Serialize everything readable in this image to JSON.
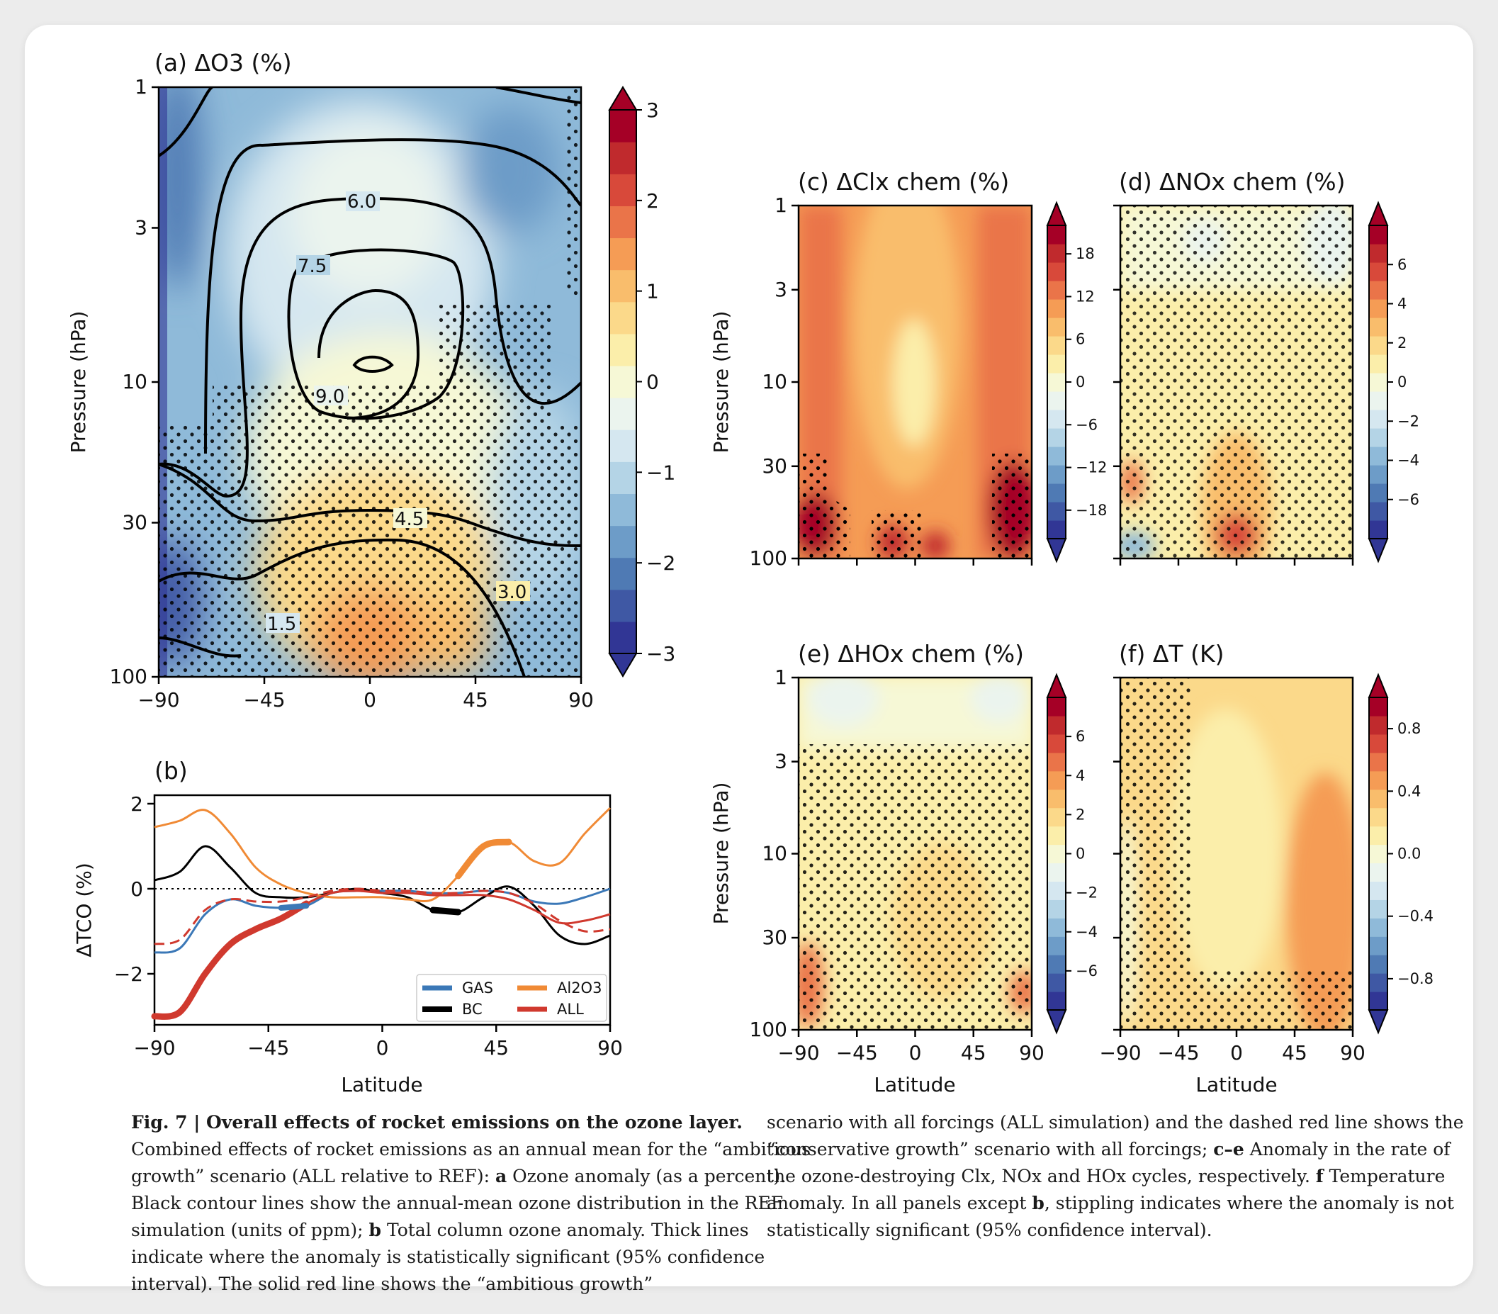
{
  "caption": {
    "fig_label": "Fig. 7 | Overall effects of rocket emissions on the ozone layer.",
    "left_text": "Combined effects of rocket emissions as an annual mean for the “ambitious growth” scenario (ALL relative to REF):",
    "a_label": "a",
    "a_text": "Ozone anomaly (as a percent). Black contour lines show the annual-mean ozone distribution in the REF simulation (units of ppm);",
    "b_label": "b",
    "b_text": "Total column ozone anomaly. Thick lines indicate where the anomaly is statistically significant (95% confidence interval). The solid red line shows the “ambitious growth”",
    "right_text1": "scenario with all forcings (ALL simulation) and the dashed red line shows the “conservative growth” scenario with all forcings;",
    "ce_label": "c–e",
    "ce_text": "Anomaly in the rate of the ozone-destroying Clx, NOx and HOx cycles, respectively.",
    "f_label": "f",
    "f_text": "Temperature anomaly. In all panels except",
    "b_label2": "b",
    "right_text2": ", stippling indicates where the anomaly is not statistically significant (95% confidence interval)."
  },
  "colors": {
    "gas": "#3b78b7",
    "bc": "#000000",
    "al2o3": "#f08a35",
    "all": "#d0392e",
    "cmap": [
      "#313695",
      "#3f58a4",
      "#4f7ab4",
      "#6d9cc8",
      "#8fbad9",
      "#b4d4e6",
      "#d5e7f0",
      "#ebf4ee",
      "#f6f8d6",
      "#fbeeaa",
      "#fbd98a",
      "#f9bd6c",
      "#f59c55",
      "#ea7449",
      "#d8493a",
      "#c02a2d",
      "#a50026"
    ]
  },
  "chart_data": [
    {
      "panel": "a",
      "type": "heatmap",
      "title": "(a) ΔO3 (%)",
      "xlabel": "",
      "ylabel": "Pressure (hPa)",
      "xlim": [
        -90,
        90
      ],
      "x_ticks": [
        "−90",
        "−45",
        "0",
        "45",
        "90"
      ],
      "ylim_hPa": [
        100,
        1
      ],
      "y_ticks": [
        "1",
        "3",
        "10",
        "30",
        "100"
      ],
      "colorbar_ticks": [
        "3",
        "2",
        "1",
        "0",
        "−1",
        "−2",
        "−3"
      ],
      "colorbar_range": [
        -3,
        3
      ],
      "contour_labels": [
        "6.0",
        "7.5",
        "9.0",
        "4.5",
        "3.0",
        "1.5"
      ],
      "description_values": {
        "max_anomaly_pct": 3,
        "min_anomaly_pct": -3
      }
    },
    {
      "panel": "b",
      "type": "line",
      "title": "(b)",
      "xlabel": "Latitude",
      "ylabel": "ΔTCO (%)",
      "xlim": [
        -90,
        90
      ],
      "ylim": [
        -3.2,
        2.2
      ],
      "x_ticks": [
        "−90",
        "−45",
        "0",
        "45",
        "90"
      ],
      "y_ticks": [
        "2",
        "0",
        "−2"
      ],
      "series": [
        {
          "name": "GAS",
          "x": [
            -90,
            -80,
            -70,
            -60,
            -50,
            -40,
            -30,
            -20,
            -10,
            0,
            10,
            20,
            30,
            40,
            50,
            60,
            70,
            80,
            90
          ],
          "y": [
            -1.5,
            -1.4,
            -0.6,
            -0.25,
            -0.4,
            -0.45,
            -0.4,
            -0.1,
            -0.05,
            -0.05,
            -0.05,
            -0.1,
            -0.1,
            -0.05,
            -0.1,
            -0.3,
            -0.35,
            -0.2,
            0.0
          ]
        },
        {
          "name": "BC",
          "x": [
            -90,
            -80,
            -70,
            -60,
            -50,
            -40,
            -30,
            -20,
            -10,
            0,
            10,
            20,
            30,
            40,
            50,
            60,
            70,
            80,
            90
          ],
          "y": [
            0.2,
            0.4,
            1.0,
            0.5,
            -0.1,
            -0.2,
            -0.2,
            -0.1,
            0.0,
            -0.1,
            -0.2,
            -0.5,
            -0.55,
            -0.2,
            0.05,
            -0.4,
            -1.1,
            -1.3,
            -1.1
          ]
        },
        {
          "name": "Al2O3",
          "x": [
            -90,
            -80,
            -70,
            -60,
            -50,
            -40,
            -30,
            -20,
            -10,
            0,
            10,
            20,
            30,
            40,
            50,
            60,
            70,
            80,
            90
          ],
          "y": [
            1.45,
            1.6,
            1.85,
            1.3,
            0.5,
            0.1,
            -0.1,
            -0.2,
            -0.2,
            -0.2,
            -0.25,
            -0.25,
            0.3,
            1.0,
            1.1,
            0.65,
            0.6,
            1.3,
            1.9
          ]
        },
        {
          "name": "ALL",
          "x": [
            -90,
            -80,
            -70,
            -60,
            -50,
            -40,
            -30,
            -20,
            -10,
            0,
            10,
            20,
            30,
            40,
            50,
            60,
            70,
            80,
            90
          ],
          "y": [
            -3.0,
            -2.9,
            -2.0,
            -1.3,
            -0.95,
            -0.7,
            -0.35,
            -0.1,
            -0.05,
            -0.1,
            -0.1,
            -0.15,
            -0.15,
            -0.15,
            -0.25,
            -0.5,
            -0.8,
            -0.75,
            -0.6
          ]
        },
        {
          "name": "ALL (conservative, dashed)",
          "x": [
            -90,
            -80,
            -70,
            -60,
            -50,
            -40,
            -30,
            -20,
            -10,
            0,
            10,
            20,
            30,
            40,
            50,
            60,
            70,
            80,
            90
          ],
          "y": [
            -1.3,
            -1.2,
            -0.5,
            -0.25,
            -0.3,
            -0.3,
            -0.2,
            -0.05,
            0.0,
            -0.05,
            -0.05,
            -0.1,
            -0.1,
            -0.05,
            -0.1,
            -0.35,
            -0.75,
            -1.0,
            -0.95
          ]
        }
      ],
      "legend": [
        "GAS",
        "Al2O3",
        "BC",
        "ALL"
      ]
    },
    {
      "panel": "c",
      "type": "heatmap",
      "title": "(c) ΔClx chem (%)",
      "ylabel": "Pressure (hPa)",
      "y_ticks": [
        "1",
        "3",
        "10",
        "30",
        "100"
      ],
      "colorbar_ticks": [
        "18",
        "12",
        "6",
        "0",
        "−6",
        "−12",
        "−18"
      ],
      "colorbar_range": [
        -22,
        22
      ]
    },
    {
      "panel": "d",
      "type": "heatmap",
      "title": "(d) ΔNOx chem (%)",
      "colorbar_ticks": [
        "6",
        "4",
        "2",
        "0",
        "−2",
        "−4",
        "−6"
      ],
      "colorbar_range": [
        -8,
        8
      ]
    },
    {
      "panel": "e",
      "type": "heatmap",
      "title": "(e) ΔHOx chem (%)",
      "xlabel": "Latitude",
      "ylabel": "Pressure (hPa)",
      "x_ticks": [
        "−90",
        "−45",
        "0",
        "45",
        "90"
      ],
      "y_ticks": [
        "1",
        "3",
        "10",
        "30",
        "100"
      ],
      "colorbar_ticks": [
        "6",
        "4",
        "2",
        "0",
        "−2",
        "−4",
        "−6"
      ],
      "colorbar_range": [
        -8,
        8
      ]
    },
    {
      "panel": "f",
      "type": "heatmap",
      "title": "(f) ΔT (K)",
      "xlabel": "Latitude",
      "x_ticks": [
        "−90",
        "−45",
        "0",
        "45",
        "90"
      ],
      "colorbar_ticks": [
        "0.8",
        "0.4",
        "0.0",
        "−0.4",
        "−0.8"
      ],
      "colorbar_range": [
        -1.0,
        1.0
      ]
    }
  ]
}
